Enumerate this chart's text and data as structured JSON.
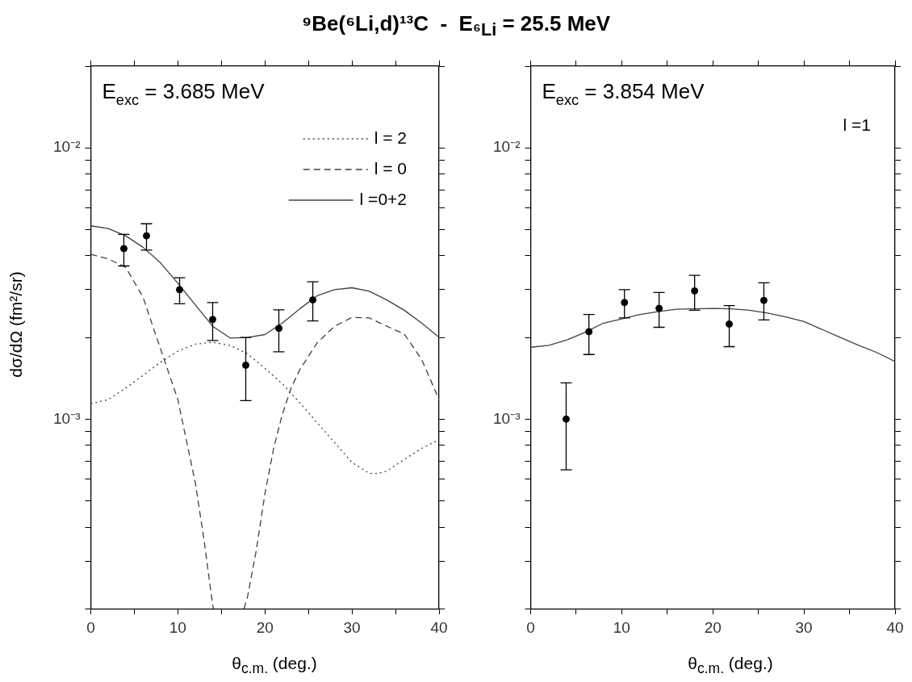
{
  "chart_data": [
    {
      "type": "line",
      "title": "⁹Be(⁶Li,d)¹³C  -  E$_{⁶Li}$ = 25.5 MeV",
      "xlabel": "θ$_{c.m.}$ (deg.)",
      "ylabel": "dσ/dΩ (fm²/sr)",
      "log": "y",
      "grid": false,
      "legend": "top right",
      "xlim": [
        0,
        40
      ],
      "xticks": [
        0,
        {
          "value": 5,
          "label": null
        },
        10,
        {
          "value": 15,
          "label": null
        },
        20,
        {
          "value": 25,
          "label": null
        },
        30,
        {
          "value": 35,
          "label": null
        },
        40
      ],
      "ylim": [
        0.0002,
        0.02
      ],
      "yticks": [
        {
          "value": 0.0002,
          "label": null
        },
        {
          "value": 0.0003,
          "label": null
        },
        {
          "value": 0.0004,
          "label": null
        },
        {
          "value": 0.0005,
          "label": null
        },
        {
          "value": 0.0006,
          "label": null
        },
        {
          "value": 0.0007,
          "label": null
        },
        {
          "value": 0.0008,
          "label": null
        },
        {
          "value": 0.0009,
          "label": null
        },
        {
          "value": 0.001,
          "label": "10⁻³"
        },
        {
          "value": 0.002,
          "label": null
        },
        {
          "value": 0.003,
          "label": null
        },
        {
          "value": 0.004,
          "label": null
        },
        {
          "value": 0.005,
          "label": null
        },
        {
          "value": 0.006,
          "label": null
        },
        {
          "value": 0.007,
          "label": null
        },
        {
          "value": 0.008,
          "label": null
        },
        {
          "value": 0.009,
          "label": null
        },
        {
          "value": 0.01,
          "label": "10⁻²"
        },
        {
          "value": 0.02,
          "label": null
        }
      ],
      "annotations": [
        "E$_{exc}$ = 3.685 MeV"
      ],
      "series": [
        {
          "type": "scatter",
          "color": "#000000",
          "marker": "circle",
          "x": [
            3.8,
            6.4,
            10.2,
            14.0,
            17.8,
            21.6,
            25.5
          ],
          "values": [
            0.00425,
            0.00474,
            0.003,
            0.00233,
            0.00158,
            0.00216,
            0.00275
          ],
          "errors": [
            [
              0.00367,
              0.0048
            ],
            [
              0.0042,
              0.00525
            ],
            [
              0.00266,
              0.00332
            ],
            [
              0.00195,
              0.00269
            ],
            [
              0.00117,
              0.002
            ],
            [
              0.00177,
              0.00253
            ],
            [
              0.0023,
              0.00321
            ]
          ]
        },
        {
          "type": "line",
          "name": "l = 2",
          "color": "#404040",
          "line_style": "dotted",
          "marker": "none",
          "x": [
            0,
            2,
            4,
            6,
            8,
            10,
            12,
            14,
            16,
            18,
            20,
            22,
            24,
            26,
            28,
            30,
            32,
            33,
            34,
            36,
            38,
            40
          ],
          "values": [
            0.00114,
            0.00118,
            0.0013,
            0.00145,
            0.00162,
            0.00178,
            0.00189,
            0.00192,
            0.00187,
            0.00174,
            0.00154,
            0.00135,
            0.00115,
            0.00097,
            0.00082,
            0.000692,
            0.000631,
            0.00063,
            0.000644,
            0.00071,
            0.00078,
            0.00084
          ]
        },
        {
          "type": "line",
          "name": "l = 0",
          "color": "#404040",
          "line_style": "dashed",
          "marker": "none",
          "x": [
            0,
            2,
            4,
            5,
            6,
            7,
            8,
            10,
            12,
            13,
            14,
            14.1,
            16,
            17.6,
            18,
            19,
            20,
            21,
            22,
            23,
            24,
            26,
            28,
            30,
            32,
            34,
            36,
            38,
            40
          ],
          "values": [
            0.00405,
            0.0039,
            0.00363,
            0.0032,
            0.00282,
            0.00226,
            0.00182,
            0.00118,
            0.000584,
            0.00036,
            0.000206,
            0.0002,
            null,
            0.0002,
            0.000221,
            0.000327,
            0.00053,
            0.00078,
            0.00104,
            0.0013,
            0.00152,
            0.00191,
            0.0022,
            0.00237,
            0.00236,
            0.0022,
            0.00206,
            0.00166,
            0.00118
          ]
        },
        {
          "type": "line",
          "name": "l =0+2",
          "color": "#404040",
          "line_style": "solid",
          "marker": "none",
          "x": [
            0,
            2,
            4,
            6,
            8,
            10,
            12,
            14,
            16,
            18,
            20,
            22,
            24,
            26,
            28,
            30,
            32,
            34,
            36,
            38,
            40
          ],
          "values": [
            0.00516,
            0.00504,
            0.00474,
            0.0043,
            0.00377,
            0.00317,
            0.00264,
            0.0022,
            0.00199,
            0.002,
            0.00205,
            0.00226,
            0.00255,
            0.00285,
            0.003,
            0.00305,
            0.00296,
            0.00275,
            0.00252,
            0.00226,
            0.002
          ]
        }
      ]
    },
    {
      "type": "line",
      "xlabel": "θ$_{c.m.}$ (deg.)",
      "log": "y",
      "grid": false,
      "xlim": [
        0,
        40
      ],
      "xticks": [
        0,
        {
          "value": 5,
          "label": null
        },
        10,
        {
          "value": 15,
          "label": null
        },
        20,
        {
          "value": 25,
          "label": null
        },
        30,
        {
          "value": 35,
          "label": null
        },
        40
      ],
      "ylim": [
        0.0002,
        0.02
      ],
      "yticks": [
        {
          "value": 0.0002,
          "label": null
        },
        {
          "value": 0.0003,
          "label": null
        },
        {
          "value": 0.0004,
          "label": null
        },
        {
          "value": 0.0005,
          "label": null
        },
        {
          "value": 0.0006,
          "label": null
        },
        {
          "value": 0.0007,
          "label": null
        },
        {
          "value": 0.0008,
          "label": null
        },
        {
          "value": 0.0009,
          "label": null
        },
        {
          "value": 0.001,
          "label": "10⁻³"
        },
        {
          "value": 0.002,
          "label": null
        },
        {
          "value": 0.003,
          "label": null
        },
        {
          "value": 0.004,
          "label": null
        },
        {
          "value": 0.005,
          "label": null
        },
        {
          "value": 0.006,
          "label": null
        },
        {
          "value": 0.007,
          "label": null
        },
        {
          "value": 0.008,
          "label": null
        },
        {
          "value": 0.009,
          "label": null
        },
        {
          "value": 0.01,
          "label": "10⁻²"
        },
        {
          "value": 0.02,
          "label": null
        }
      ],
      "annotations": [
        "E$_{exc}$ = 3.854 MeV",
        "l =1"
      ],
      "series": [
        {
          "type": "scatter",
          "color": "#000000",
          "marker": "circle",
          "x": [
            3.9,
            6.4,
            10.3,
            14.1,
            18.0,
            21.8,
            25.6
          ],
          "values": [
            0.001,
            0.0021,
            0.00269,
            0.00256,
            0.00297,
            0.00224,
            0.00274
          ],
          "errors": [
            [
              0.00065,
              0.00136
            ],
            [
              0.00173,
              0.00243
            ],
            [
              0.00236,
              0.003
            ],
            [
              0.00218,
              0.00293
            ],
            [
              0.00252,
              0.00339
            ],
            [
              0.00185,
              0.00262
            ],
            [
              0.00232,
              0.00318
            ]
          ]
        },
        {
          "type": "line",
          "color": "#404040",
          "line_style": "solid",
          "marker": "none",
          "x": [
            0,
            2,
            4,
            6,
            8,
            10,
            12,
            14,
            16,
            20,
            22,
            24,
            26,
            28,
            30,
            32,
            34,
            36,
            38,
            40
          ],
          "values": [
            0.00184,
            0.00187,
            0.00196,
            0.00209,
            0.00226,
            0.00234,
            0.00243,
            0.00249,
            0.00254,
            0.00256,
            0.00255,
            0.00252,
            0.00246,
            0.00238,
            0.00229,
            0.00214,
            0.002,
            0.00187,
            0.00176,
            0.00163
          ]
        }
      ]
    }
  ]
}
